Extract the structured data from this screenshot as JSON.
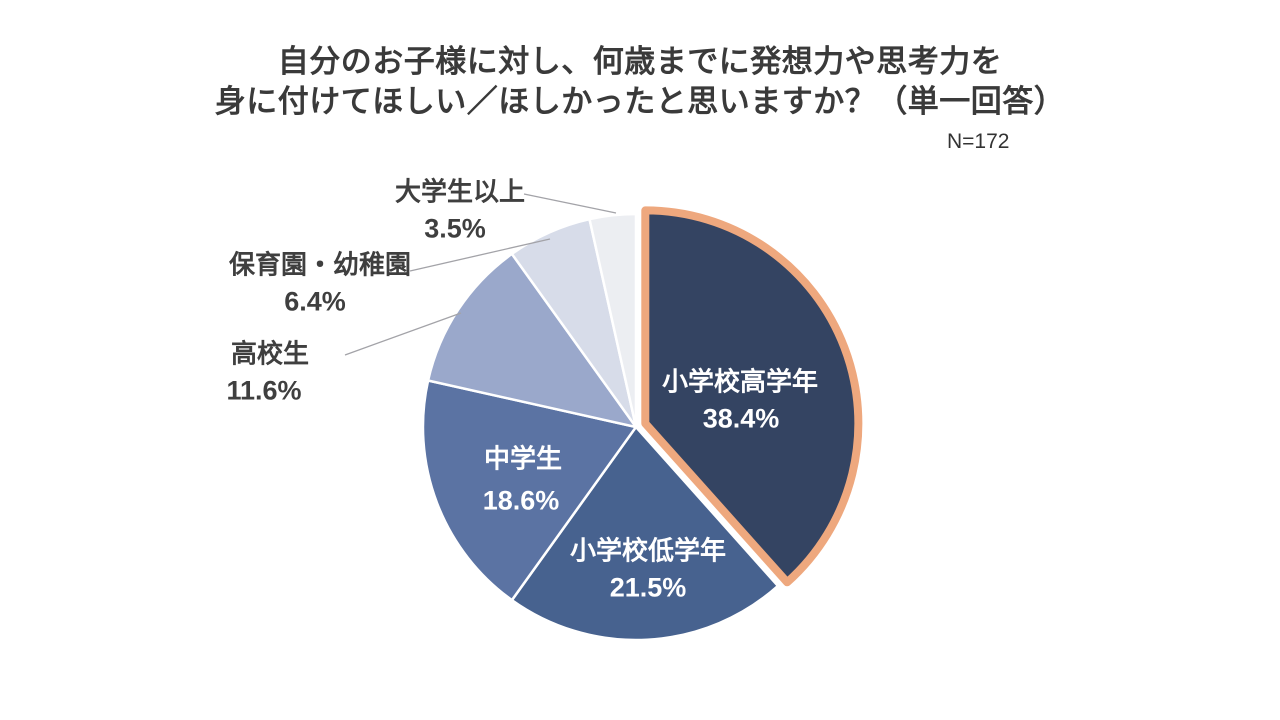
{
  "title": {
    "line1": "自分のお子様に対し、何歳までに発想力や思考力を",
    "line2": "身に付けてほしい／ほしかったと思いますか？（単一回答）",
    "sample_size": "N=172"
  },
  "chart_data": {
    "type": "pie",
    "title": "自分のお子様に対し、何歳までに発想力や思考力を身に付けてほしい／ほしかったと思いますか？（単一回答）",
    "sample_size": "N=172",
    "unit": "%",
    "start_angle_deg": 0,
    "direction": "clockwise",
    "total_percent": 100,
    "slice_gap_color": "#ffffff",
    "leader_line_color": "#a3a3a8",
    "slices": [
      {
        "label": "小学校高学年",
        "value": 38.4,
        "display_value": "38.4%",
        "color": "#344462",
        "exploded": true,
        "border_color": "#eea87e",
        "label_position": "inside",
        "label_color": "#ffffff"
      },
      {
        "label": "小学校低学年",
        "value": 21.5,
        "display_value": "21.5%",
        "color": "#47628f",
        "exploded": false,
        "label_position": "inside",
        "label_color": "#ffffff"
      },
      {
        "label": "中学生",
        "value": 18.6,
        "display_value": "18.6%",
        "color": "#5b73a3",
        "exploded": false,
        "label_position": "inside",
        "label_color": "#ffffff"
      },
      {
        "label": "高校生",
        "value": 11.6,
        "display_value": "11.6%",
        "color": "#9aa8cb",
        "exploded": false,
        "label_position": "outside",
        "label_color": "#3f3f3f"
      },
      {
        "label": "保育園・幼稚園",
        "value": 6.4,
        "display_value": "6.4%",
        "color": "#d7dce9",
        "exploded": false,
        "label_position": "outside",
        "label_color": "#3f3f3f"
      },
      {
        "label": "大学生以上",
        "value": 3.5,
        "display_value": "3.5%",
        "color": "#eceef2",
        "exploded": false,
        "label_position": "outside",
        "label_color": "#3f3f3f"
      }
    ]
  }
}
